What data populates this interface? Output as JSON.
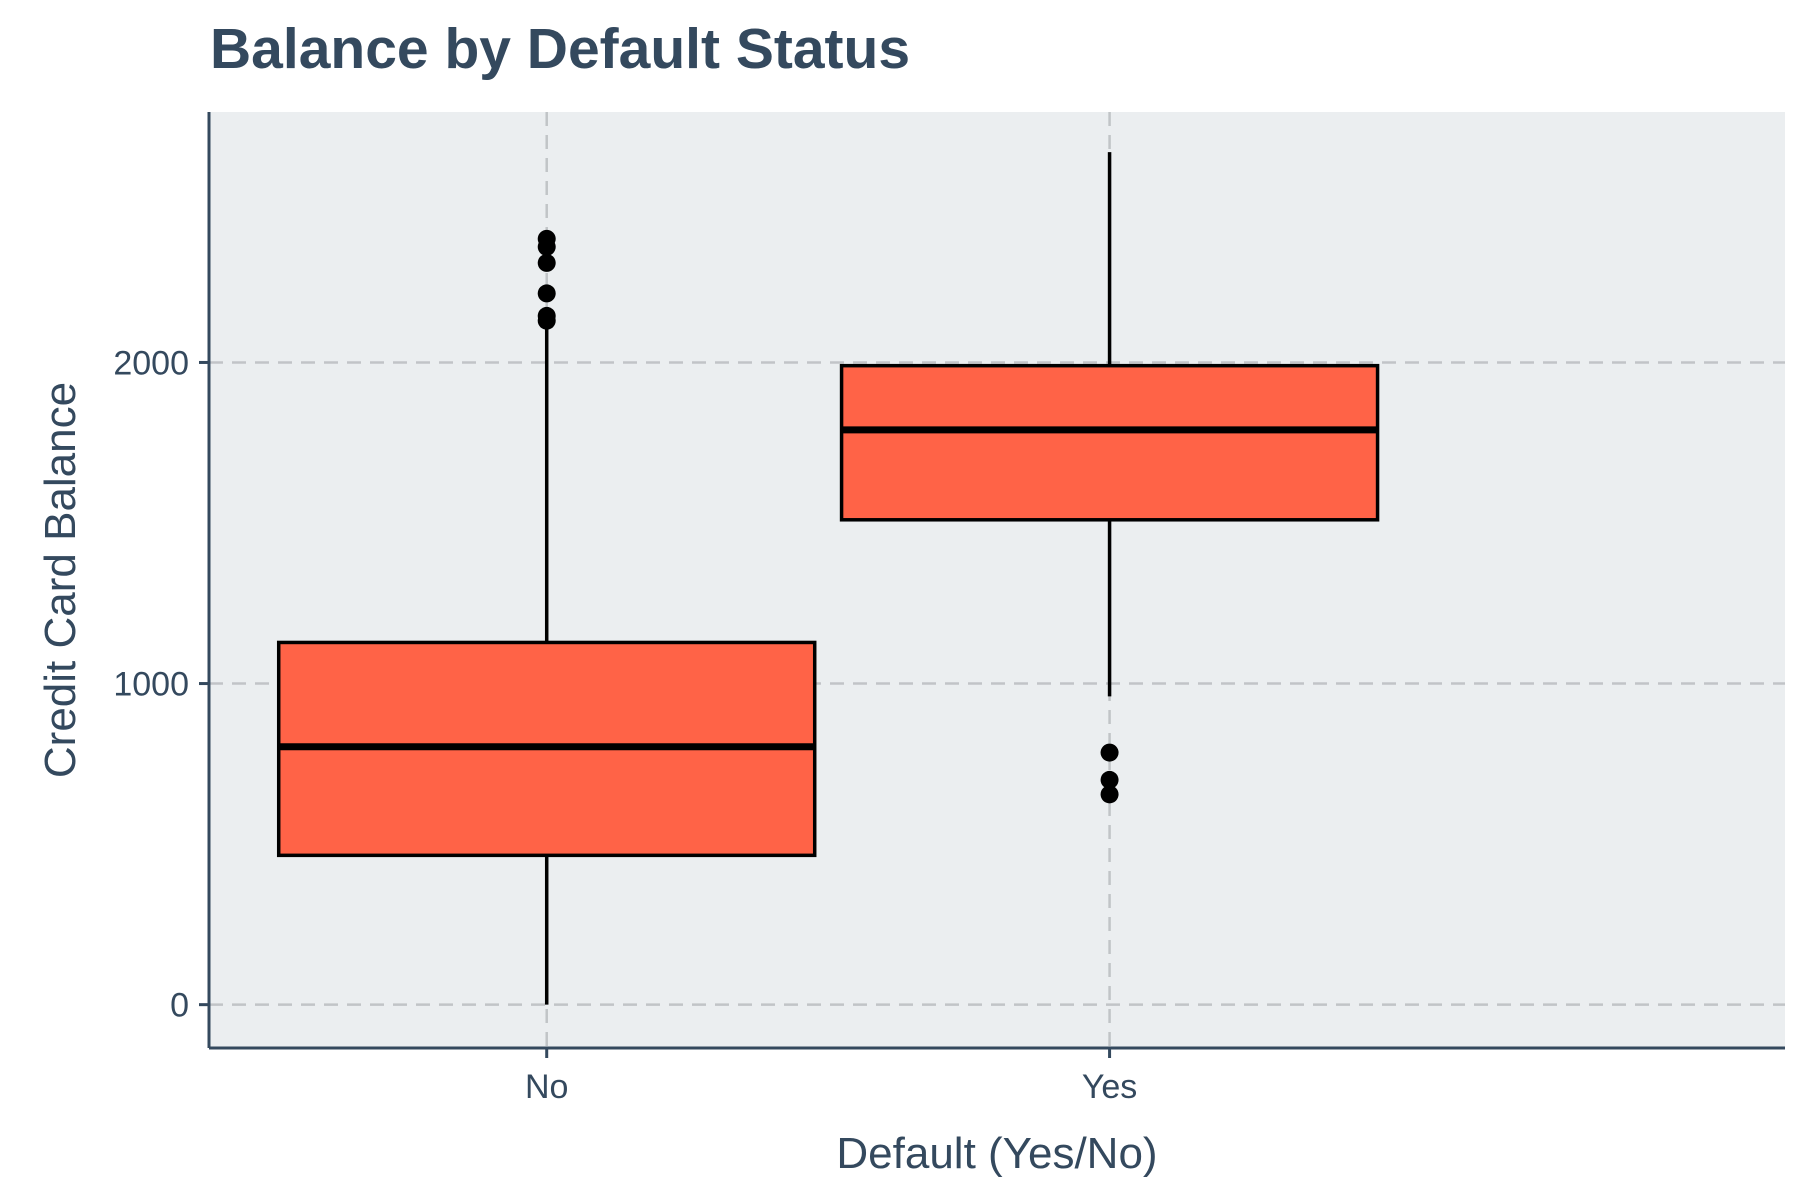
{
  "chart_data": {
    "type": "box",
    "title": "Balance by Default Status",
    "xlabel": "Default (Yes/No)",
    "ylabel": "Credit Card Balance",
    "categories": [
      "No",
      "Yes"
    ],
    "y_ticks": [
      0,
      1000,
      2000
    ],
    "y_tick_labels": [
      "0",
      "1000",
      "2000"
    ],
    "ylim": [
      -135,
      2780
    ],
    "grid": true,
    "boxes": [
      {
        "category": "No",
        "whisker_low": 0,
        "q1": 465,
        "median": 803,
        "q3": 1128,
        "whisker_high": 2120,
        "outliers": [
          2130,
          2145,
          2215,
          2310,
          2360,
          2385
        ]
      },
      {
        "category": "Yes",
        "whisker_low": 960,
        "q1": 1510,
        "median": 1790,
        "q3": 1990,
        "whisker_high": 2655,
        "outliers": [
          655,
          700,
          785
        ]
      }
    ],
    "colors": {
      "box_fill": "#ff6347",
      "panel_background": "#ebeef0",
      "text": "#34495e",
      "grid": "#c1c4c7"
    }
  }
}
